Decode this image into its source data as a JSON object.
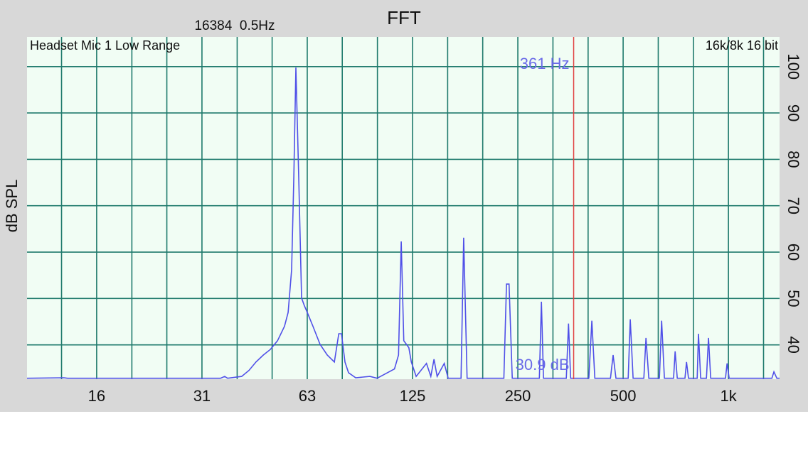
{
  "chart_data": {
    "type": "line",
    "title": "FFT",
    "subtitle": "16384  0.5Hz",
    "ylabel": "dB SPL",
    "annotations": {
      "left": "Headset Mic 1 Low Range",
      "right": "16k/8k 16 bit"
    },
    "cursor": {
      "x": 361,
      "x_label": "361 Hz",
      "y_label": "30.9 dB",
      "color": "#e04040"
    },
    "x_log": true,
    "xlim": [
      9.88,
      1400
    ],
    "xticks": [
      {
        "value": 15.625,
        "label": "16"
      },
      {
        "value": 31.25,
        "label": "31"
      },
      {
        "value": 62.5,
        "label": "63"
      },
      {
        "value": 125,
        "label": "125"
      },
      {
        "value": 250,
        "label": "250"
      },
      {
        "value": 500,
        "label": "500"
      },
      {
        "value": 1000,
        "label": "1k"
      }
    ],
    "x_minor_grid": [
      12.4,
      19.7,
      24.8,
      39.4,
      49.6,
      78.7,
      99.2,
      157.5,
      198.4,
      315,
      397,
      630,
      794,
      1260
    ],
    "ylim": [
      32.6,
      106.4
    ],
    "yticks": [
      40,
      50,
      60,
      70,
      80,
      90,
      100
    ],
    "grid": true,
    "color": "#5050e8",
    "x": [
      9.88,
      12.6,
      12.9,
      35.3,
      36.3,
      37.0,
      40.6,
      42.6,
      44.6,
      46.8,
      49.0,
      51.4,
      53.8,
      55.1,
      56.4,
      57.2,
      58.0,
      59.1,
      60.2,
      61.3,
      62.5,
      64.9,
      68.0,
      71.3,
      74.7,
      76.9,
      78.3,
      80.1,
      82.0,
      86.0,
      94.4,
      99.0,
      111,
      114,
      116,
      118,
      122,
      124,
      128,
      137,
      141,
      144,
      147,
      154,
      158,
      172,
      175,
      179,
      228,
      232,
      236,
      241,
      288,
      292,
      296,
      344,
      349,
      354,
      399,
      407,
      415,
      460,
      468,
      477,
      517,
      524,
      534,
      573,
      581,
      592,
      635,
      644,
      656,
      697,
      704,
      714,
      751,
      759,
      769,
      814,
      821,
      833,
      865,
      877,
      890,
      981,
      991,
      1005,
      1331,
      1349,
      1375,
      1400
    ],
    "values": [
      32.8,
      32.9,
      32.8,
      32.8,
      33.2,
      32.8,
      33.2,
      34.5,
      36.3,
      37.8,
      39.0,
      40.9,
      44.0,
      47.0,
      56.2,
      76.1,
      99.8,
      76.1,
      50.1,
      48.5,
      47.0,
      44.0,
      40.1,
      37.8,
      36.3,
      42.4,
      42.4,
      36.3,
      34.0,
      32.9,
      33.2,
      32.8,
      34.8,
      37.8,
      62.3,
      40.9,
      39.4,
      36.3,
      33.2,
      36.0,
      33.2,
      36.9,
      33.2,
      36.0,
      32.8,
      32.8,
      63.1,
      32.8,
      32.8,
      53.1,
      53.1,
      32.8,
      32.8,
      49.3,
      32.8,
      32.8,
      44.6,
      32.8,
      32.8,
      45.2,
      32.8,
      32.8,
      37.8,
      32.8,
      32.8,
      45.5,
      32.8,
      32.8,
      41.5,
      32.8,
      32.8,
      45.2,
      32.8,
      32.8,
      38.6,
      32.8,
      32.8,
      36.3,
      32.8,
      32.8,
      42.4,
      32.8,
      32.8,
      41.5,
      32.8,
      32.8,
      36.0,
      32.8,
      32.8,
      34.2,
      32.8,
      32.8
    ]
  }
}
